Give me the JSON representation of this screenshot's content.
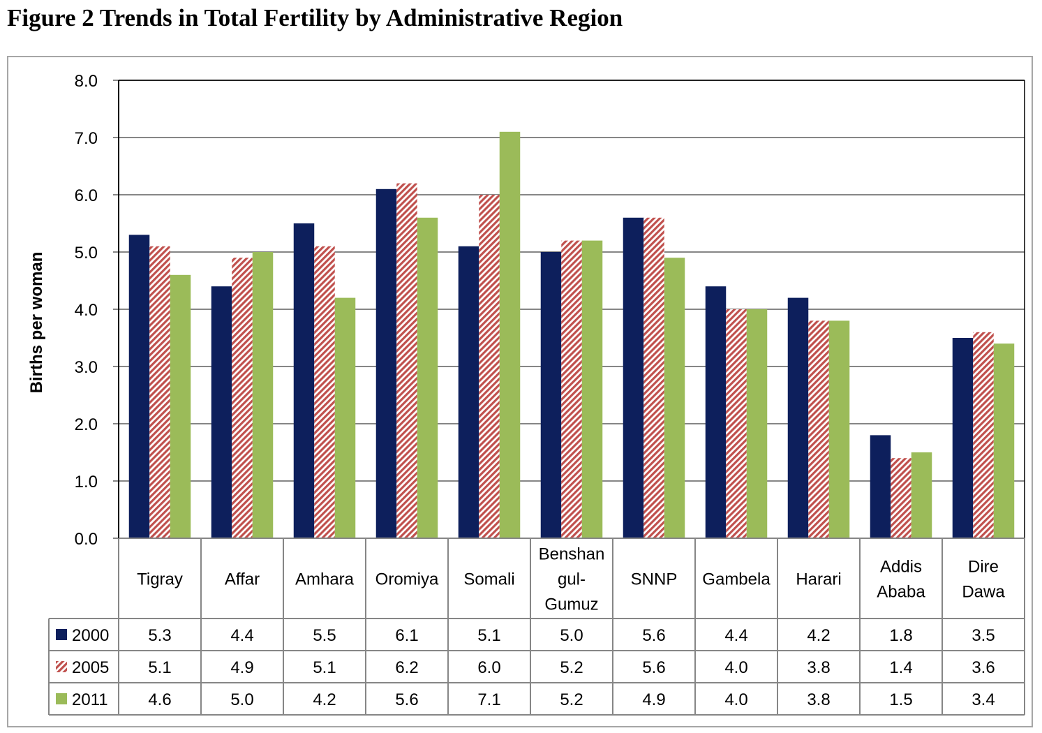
{
  "title": "Figure 2 Trends in Total Fertility by Administrative Region",
  "chart_data": {
    "type": "bar",
    "title": "Figure 2 Trends in Total Fertility by Administrative Region",
    "xlabel": "",
    "ylabel": "Births per woman",
    "ylim": [
      0,
      8
    ],
    "yticks": [
      "0.0",
      "1.0",
      "2.0",
      "3.0",
      "4.0",
      "5.0",
      "6.0",
      "7.0",
      "8.0"
    ],
    "grid": true,
    "legend": "data-table-left",
    "categories": [
      [
        "Tigray"
      ],
      [
        "Affar"
      ],
      [
        "Amhara"
      ],
      [
        "Oromiya"
      ],
      [
        "Somali"
      ],
      [
        "Benshan",
        "gul-",
        "Gumuz"
      ],
      [
        "SNNP"
      ],
      [
        "Gambela"
      ],
      [
        "Harari"
      ],
      [
        "Addis",
        "Ababa"
      ],
      [
        "Dire",
        "Dawa"
      ]
    ],
    "series": [
      {
        "name": "2000",
        "color": "#0d1f5c",
        "pattern": "solid",
        "values": [
          5.3,
          4.4,
          5.5,
          6.1,
          5.1,
          5.0,
          5.6,
          4.4,
          4.2,
          1.8,
          3.5
        ],
        "labels": [
          "5.3",
          "4.4",
          "5.5",
          "6.1",
          "5.1",
          "5.0",
          "5.6",
          "4.4",
          "4.2",
          "1.8",
          "3.5"
        ]
      },
      {
        "name": "2005",
        "color": "#c0504d",
        "pattern": "diagonal-stripes",
        "values": [
          5.1,
          4.9,
          5.1,
          6.2,
          6.0,
          5.2,
          5.6,
          4.0,
          3.8,
          1.4,
          3.6
        ],
        "labels": [
          "5.1",
          "4.9",
          "5.1",
          "6.2",
          "6.0",
          "5.2",
          "5.6",
          "4.0",
          "3.8",
          "1.4",
          "3.6"
        ]
      },
      {
        "name": "2011",
        "color": "#9bbb59",
        "pattern": "solid",
        "values": [
          4.6,
          5.0,
          4.2,
          5.6,
          7.1,
          5.2,
          4.9,
          4.0,
          3.8,
          1.5,
          3.4
        ],
        "labels": [
          "4.6",
          "5.0",
          "4.2",
          "5.6",
          "7.1",
          "5.2",
          "4.9",
          "4.0",
          "3.8",
          "1.5",
          "3.4"
        ]
      }
    ]
  }
}
